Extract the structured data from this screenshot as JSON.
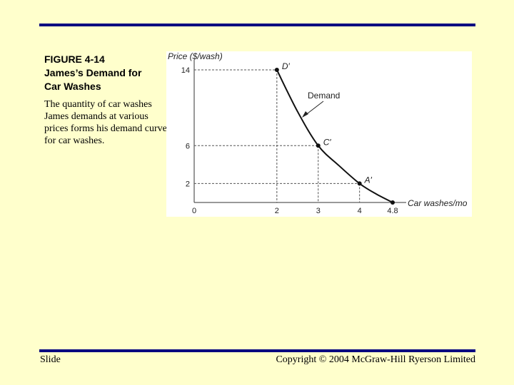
{
  "figure": {
    "number": "FIGURE 4-14",
    "title_line1": "James’s Demand for",
    "title_line2": "Car Washes",
    "caption": "The quantity of car washes James demands at various prices forms his demand curve for car washes."
  },
  "footer": {
    "left": "Slide",
    "right": "Copyright © 2004 McGraw-Hill Ryerson Limited"
  },
  "colors": {
    "background": "#ffffcc",
    "rule": "#000080",
    "plot_bg": "#ffffff"
  },
  "chart_data": {
    "type": "line",
    "ylabel": "Price ($/wash)",
    "xlabel": "Car washes/mo",
    "x_ticks": [
      "0",
      "2",
      "3",
      "4",
      "4.8"
    ],
    "y_ticks": [
      "2",
      "6",
      "14"
    ],
    "xlim": [
      0,
      4.8
    ],
    "ylim": [
      0,
      14
    ],
    "grid": false,
    "series": [
      {
        "name": "Demand",
        "x": [
          2,
          2.5,
          3,
          3.5,
          4,
          4.4,
          4.8
        ],
        "y": [
          14,
          9.6,
          6,
          3.9,
          2,
          0.9,
          0
        ]
      }
    ],
    "points": [
      {
        "label": "D′",
        "x": 2,
        "y": 14
      },
      {
        "label": "C′",
        "x": 3,
        "y": 6
      },
      {
        "label": "A′",
        "x": 4,
        "y": 2
      }
    ],
    "annotations": [
      {
        "text": "Demand"
      }
    ]
  }
}
